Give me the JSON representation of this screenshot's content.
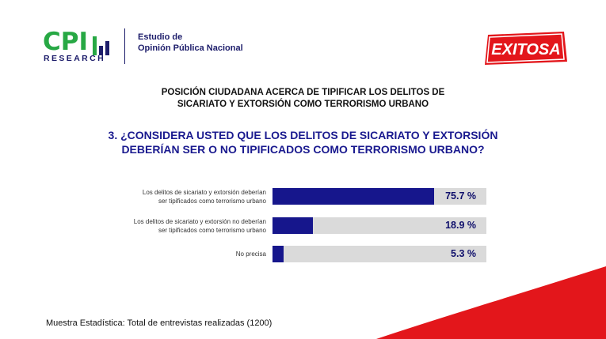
{
  "header": {
    "cpi_logo_text": "CPI",
    "cpi_logo_subtext": "RESEARCH",
    "cpi_logo_color": "#27a844",
    "estudio_line1": "Estudio de",
    "estudio_line2": "Opinión Pública Nacional",
    "exitosa_logo_text": "EXITOSA",
    "exitosa_logo_color": "#e3161b"
  },
  "subtitle_line1": "POSICIÓN CIUDADANA ACERCA DE TIPIFICAR LOS DELITOS DE",
  "subtitle_line2": "SICARIATO Y EXTORSIÓN COMO TERRORISMO URBANO",
  "question_line1": "3. ¿CONSIDERA USTED QUE LOS DELITOS DE SICARIATO Y EXTORSIÓN",
  "question_line2": "DEBERÍAN SER O NO TIPIFICADOS COMO TERRORISMO URBANO?",
  "chart_data": {
    "type": "bar",
    "orientation": "horizontal",
    "categories": [
      [
        "Los delitos de sicariato y extorsión deberían",
        "ser tipificados como terrorismo urbano"
      ],
      [
        "Los delitos de sicariato y extorsión no deberían",
        "ser tipificados como terrorismo urbano"
      ],
      [
        "No precisa"
      ]
    ],
    "values": [
      75.7,
      18.9,
      5.3
    ],
    "value_labels": [
      "75.7 %",
      "18.9 %",
      "5.3 %"
    ],
    "xlim": [
      0,
      100
    ],
    "bar_color": "#16168c",
    "track_color": "#dadada",
    "grid": false
  },
  "footer": "Muestra Estadística: Total de entrevistas realizadas (1200)"
}
